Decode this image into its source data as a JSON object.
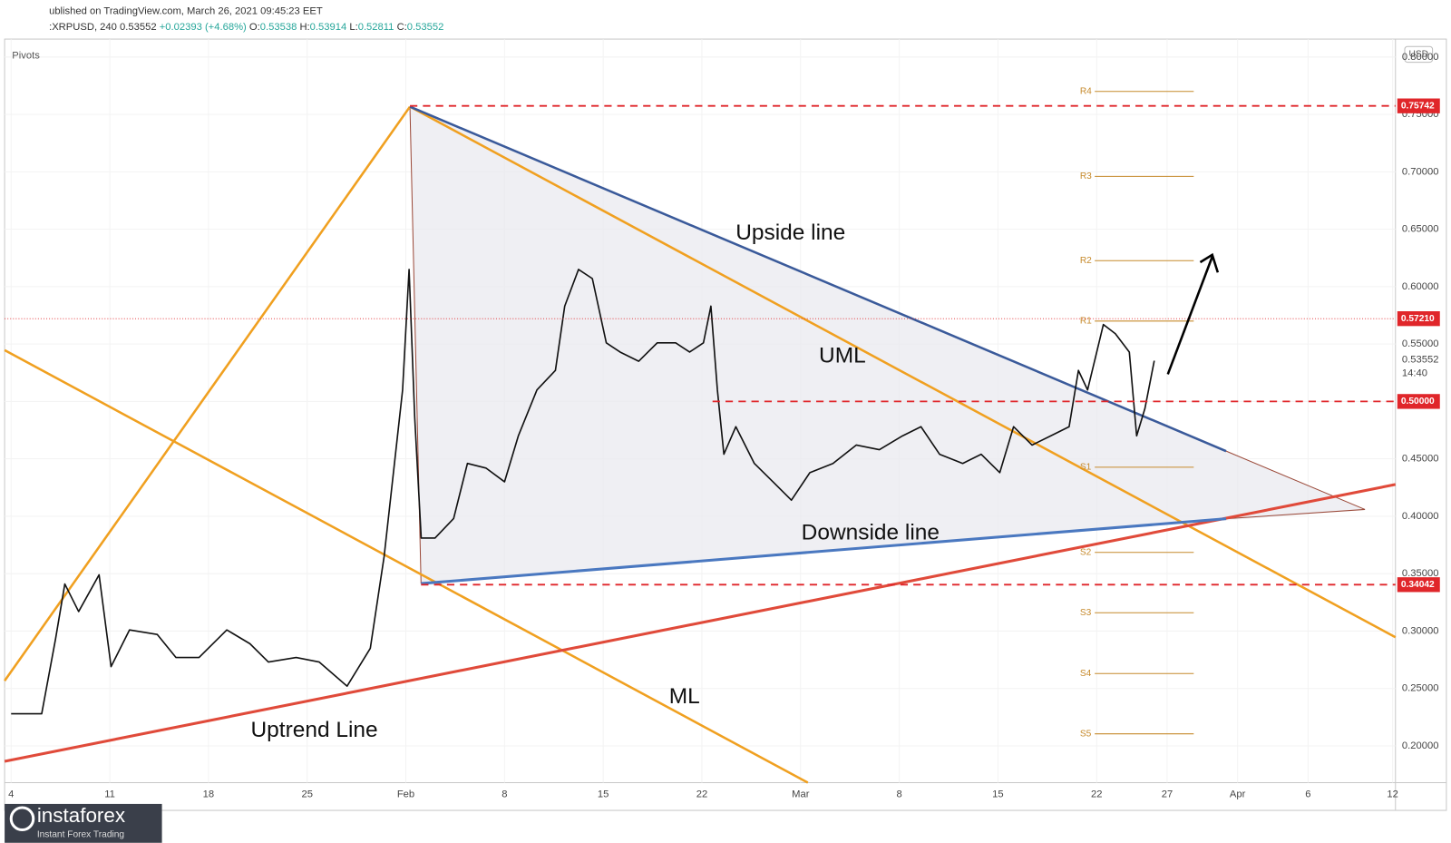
{
  "chart_data": {
    "type": "line",
    "header": "ublished on TradingView.com, March 26, 2021 09:45:23 EET",
    "symbol": ":XRPUSD, 240",
    "last": 0.53552,
    "change": "+0.02393 (+4.68%)",
    "ohlc": [
      {
        "name": "O:",
        "value": 0.53538
      },
      {
        "name": "H:",
        "value": 0.53914
      },
      {
        "name": "L:",
        "value": 0.52811
      },
      {
        "name": "C:",
        "value": 0.53552
      }
    ],
    "indicator": "Pivots",
    "currency": "USD",
    "countdown": "14:40",
    "annotations": [
      "Upside line",
      "UML",
      "Downside line",
      "ML",
      "Uptrend Line"
    ],
    "logo": "instaforex",
    "logo_tagline": "Instant Forex Trading",
    "xlim": [
      3.54,
      102.2
    ],
    "ylim": [
      0.168,
      0.8156
    ],
    "xticks": [
      {
        "value": 4,
        "label": "4"
      },
      {
        "value": 11,
        "label": "11"
      },
      {
        "value": 18,
        "label": "18"
      },
      {
        "value": 25,
        "label": "25"
      },
      {
        "value": 32,
        "label": "Feb"
      },
      {
        "value": 39,
        "label": "8"
      },
      {
        "value": 46,
        "label": "15"
      },
      {
        "value": 53,
        "label": "22"
      },
      {
        "value": 60,
        "label": "Mar"
      },
      {
        "value": 67,
        "label": "8"
      },
      {
        "value": 74,
        "label": "15"
      },
      {
        "value": 81,
        "label": "22"
      },
      {
        "value": 86,
        "label": "27"
      },
      {
        "value": 91,
        "label": "Apr"
      },
      {
        "value": 96,
        "label": "6"
      },
      {
        "value": 102,
        "label": "12"
      }
    ],
    "yticks": [
      {
        "value": 0.2,
        "label": "0.20000"
      },
      {
        "value": 0.25,
        "label": "0.25000"
      },
      {
        "value": 0.3,
        "label": "0.30000"
      },
      {
        "value": 0.35,
        "label": "0.35000"
      },
      {
        "value": 0.4,
        "label": "0.40000"
      },
      {
        "value": 0.45,
        "label": "0.45000"
      },
      {
        "value": 0.5,
        "label": "0.50000"
      },
      {
        "value": 0.55,
        "label": "0.55000"
      },
      {
        "value": 0.6,
        "label": "0.60000"
      },
      {
        "value": 0.65,
        "label": "0.65000"
      },
      {
        "value": 0.7,
        "label": "0.70000"
      },
      {
        "value": 0.75,
        "label": "0.75000"
      },
      {
        "value": 0.8,
        "label": "0.80000"
      }
    ],
    "price_levels": [
      {
        "value": 0.75742,
        "label": "0.75742"
      },
      {
        "value": 0.5721,
        "label": "0.57210"
      },
      {
        "value": 0.5,
        "label": "0.50000"
      },
      {
        "value": 0.34042,
        "label": "0.34042"
      }
    ],
    "pivots": [
      {
        "name": "R4",
        "value": 0.77
      },
      {
        "name": "R3",
        "value": 0.696
      },
      {
        "name": "R2",
        "value": 0.6226
      },
      {
        "name": "R1",
        "value": 0.57
      },
      {
        "name": "S1",
        "value": 0.4427
      },
      {
        "name": "S2",
        "value": 0.3685
      },
      {
        "name": "S3",
        "value": 0.316
      },
      {
        "name": "S4",
        "value": 0.263
      },
      {
        "name": "S5",
        "value": 0.2105
      }
    ],
    "series": [
      {
        "color": "#111111",
        "x": [
          4.0,
          6.17,
          7.15,
          7.81,
          8.79,
          10.24,
          11.09,
          12.4,
          14.37,
          15.69,
          17.33,
          19.3,
          20.94,
          22.25,
          24.22,
          25.86,
          27.83,
          29.48,
          30.46,
          31.12,
          31.77,
          32.23,
          32.63,
          33.09,
          34.07,
          35.39,
          36.37,
          37.68,
          39.0,
          39.98,
          41.3,
          42.61,
          43.27,
          44.25,
          45.23,
          46.22,
          47.2,
          48.52,
          49.83,
          51.14,
          52.13,
          53.11,
          53.64,
          54.1,
          54.56,
          55.41,
          56.72,
          58.04,
          59.35,
          60.66,
          62.3,
          63.95,
          65.59,
          67.23,
          68.54,
          69.86,
          71.5,
          72.81,
          74.13,
          75.11,
          76.42,
          77.74,
          79.05,
          79.71,
          80.36,
          81.48,
          82.33,
          83.32,
          83.84,
          84.43,
          85.09
        ],
        "values": [
          0.228,
          0.228,
          0.293,
          0.341,
          0.317,
          0.349,
          0.269,
          0.301,
          0.297,
          0.277,
          0.277,
          0.301,
          0.289,
          0.273,
          0.277,
          0.273,
          0.252,
          0.285,
          0.365,
          0.438,
          0.51,
          0.615,
          0.486,
          0.381,
          0.381,
          0.398,
          0.446,
          0.442,
          0.43,
          0.47,
          0.51,
          0.527,
          0.583,
          0.615,
          0.607,
          0.551,
          0.543,
          0.535,
          0.551,
          0.551,
          0.543,
          0.551,
          0.583,
          0.51,
          0.454,
          0.478,
          0.446,
          0.43,
          0.414,
          0.438,
          0.446,
          0.462,
          0.458,
          0.47,
          0.478,
          0.454,
          0.446,
          0.454,
          0.438,
          0.478,
          0.462,
          0.47,
          0.478,
          0.527,
          0.51,
          0.567,
          0.559,
          0.543,
          0.47,
          0.494,
          0.5355
        ]
      }
    ]
  }
}
